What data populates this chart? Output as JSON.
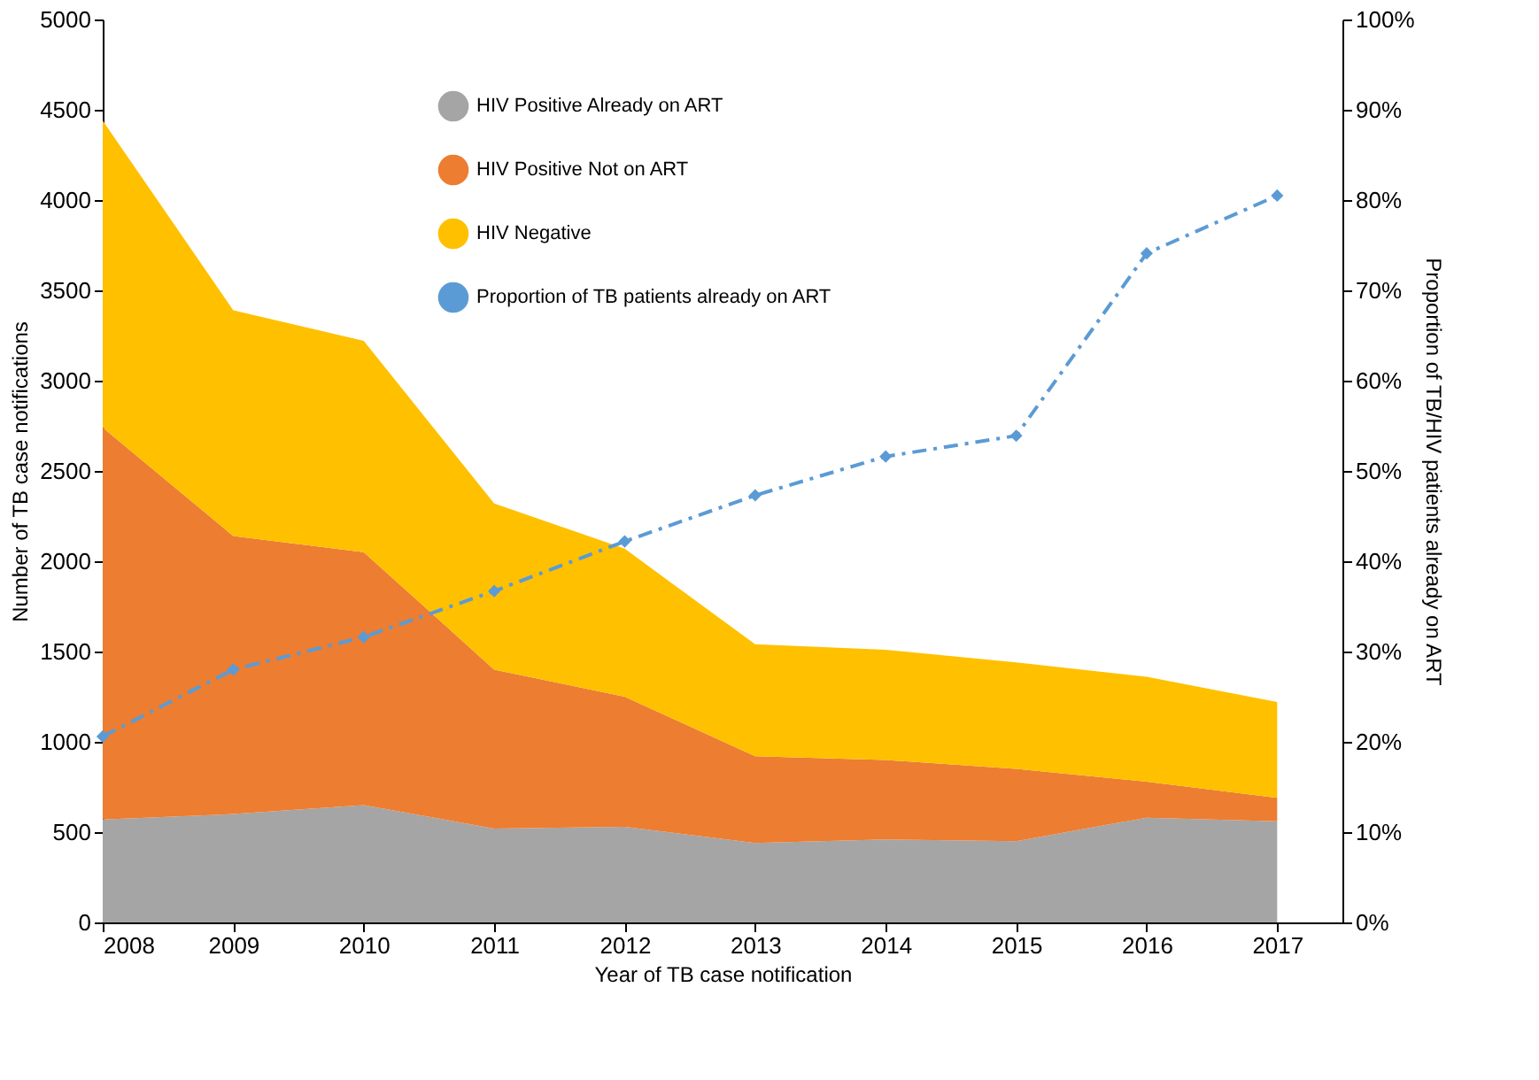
{
  "chart_data": {
    "type": "area",
    "stacked": true,
    "xlabel": "Year of TB case notification",
    "ylabel": "Number of TB case notifications",
    "y2label": "Proportion of TB/HIV patients already on ART",
    "x": [
      2008,
      2009,
      2010,
      2011,
      2012,
      2013,
      2014,
      2015,
      2016,
      2017
    ],
    "xlim": [
      2008,
      2017.5
    ],
    "xticks": [
      2008,
      2009,
      2010,
      2011,
      2012,
      2013,
      2014,
      2015,
      2016,
      2017
    ],
    "ylim": [
      0,
      5000
    ],
    "yticks": [
      0,
      500,
      1000,
      1500,
      2000,
      2500,
      3000,
      3500,
      4000,
      4500,
      5000
    ],
    "y2lim": [
      0,
      100
    ],
    "y2ticks": [
      {
        "value": 0,
        "label": "0%"
      },
      {
        "value": 10,
        "label": "10%"
      },
      {
        "value": 20,
        "label": "20%"
      },
      {
        "value": 30,
        "label": "30%"
      },
      {
        "value": 40,
        "label": "40%"
      },
      {
        "value": 50,
        "label": "50%"
      },
      {
        "value": 60,
        "label": "60%"
      },
      {
        "value": 70,
        "label": "70%"
      },
      {
        "value": 80,
        "label": "80%"
      },
      {
        "value": 90,
        "label": "90%"
      },
      {
        "value": 100,
        "label": "100%"
      }
    ],
    "series": [
      {
        "name": "HIV Positive Already on ART",
        "color": "#a5a5a5",
        "values": [
          570,
          600,
          650,
          520,
          530,
          440,
          460,
          450,
          580,
          560
        ]
      },
      {
        "name": "HIV Positive Not on ART",
        "color": "#ed7d31",
        "values": [
          2170,
          1540,
          1400,
          880,
          720,
          480,
          440,
          400,
          200,
          130
        ]
      },
      {
        "name": "HIV Negative",
        "color": "#ffc000",
        "values": [
          1700,
          1250,
          1170,
          920,
          820,
          620,
          610,
          590,
          580,
          530
        ]
      },
      {
        "name": "Proportion of TB patients already on ART",
        "color": "#5b9bd5",
        "type": "line",
        "axis": "y2",
        "marker": "diamond",
        "line_style": "dashed",
        "values": [
          20.6,
          28.0,
          31.6,
          36.7,
          42.2,
          47.3,
          51.6,
          53.9,
          74.1,
          80.5
        ]
      }
    ],
    "grid": false,
    "legend": "top"
  }
}
